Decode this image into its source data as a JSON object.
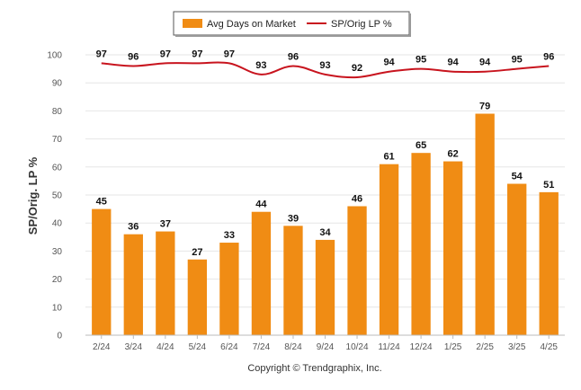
{
  "chart_data": {
    "type": "bar",
    "categories": [
      "2/24",
      "3/24",
      "4/24",
      "5/24",
      "6/24",
      "7/24",
      "8/24",
      "9/24",
      "10/24",
      "11/24",
      "12/24",
      "1/25",
      "2/25",
      "3/25",
      "4/25"
    ],
    "series": [
      {
        "name": "Avg Days on Market",
        "type": "bar",
        "color": "#F08C14",
        "values": [
          45,
          36,
          37,
          27,
          33,
          44,
          39,
          34,
          46,
          61,
          65,
          62,
          79,
          54,
          51
        ]
      },
      {
        "name": "SP/Orig LP %",
        "type": "line",
        "color": "#C8141E",
        "values": [
          97,
          96,
          97,
          97,
          97,
          93,
          96,
          93,
          92,
          94,
          95,
          94,
          94,
          95,
          96
        ]
      }
    ],
    "ylabel": "SP/Orig. LP %",
    "ylim": [
      0,
      100
    ],
    "yticks": [
      0,
      10,
      20,
      30,
      40,
      50,
      60,
      70,
      80,
      90,
      100
    ],
    "grid": true,
    "legend_position": "top-center",
    "credit": "Copyright © Trendgraphix, Inc."
  }
}
